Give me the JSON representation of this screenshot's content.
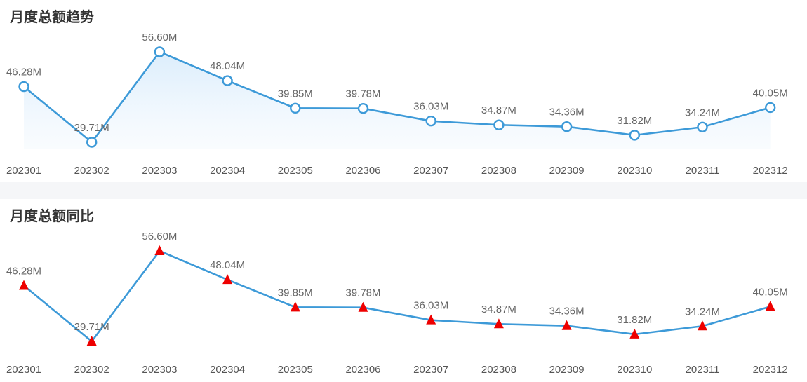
{
  "chart_data": [
    {
      "type": "line",
      "title": "月度总额趋势",
      "categories": [
        "202301",
        "202302",
        "202303",
        "202304",
        "202305",
        "202306",
        "202307",
        "202308",
        "202309",
        "202310",
        "202311",
        "202312"
      ],
      "values": [
        46.28,
        29.71,
        56.6,
        48.04,
        39.85,
        39.78,
        36.03,
        34.87,
        34.36,
        31.82,
        34.24,
        40.05
      ],
      "value_labels": [
        "46.28M",
        "29.71M",
        "56.60M",
        "48.04M",
        "39.85M",
        "39.78M",
        "36.03M",
        "34.87M",
        "34.36M",
        "31.82M",
        "34.24M",
        "40.05M"
      ],
      "unit": "M",
      "marker": "circle",
      "area_fill": true,
      "line_color": "#3d9ad8",
      "grid": false,
      "legend": "none"
    },
    {
      "type": "line",
      "title": "月度总额同比",
      "categories": [
        "202301",
        "202302",
        "202303",
        "202304",
        "202305",
        "202306",
        "202307",
        "202308",
        "202309",
        "202310",
        "202311",
        "202312"
      ],
      "values": [
        46.28,
        29.71,
        56.6,
        48.04,
        39.85,
        39.78,
        36.03,
        34.87,
        34.36,
        31.82,
        34.24,
        40.05
      ],
      "value_labels": [
        "46.28M",
        "29.71M",
        "56.60M",
        "48.04M",
        "39.85M",
        "39.78M",
        "36.03M",
        "34.87M",
        "34.36M",
        "31.82M",
        "34.24M",
        "40.05M"
      ],
      "unit": "M",
      "marker": "triangle",
      "marker_color": "#ee0000",
      "area_fill": false,
      "line_color": "#3d9ad8",
      "grid": false,
      "legend": "none"
    }
  ]
}
